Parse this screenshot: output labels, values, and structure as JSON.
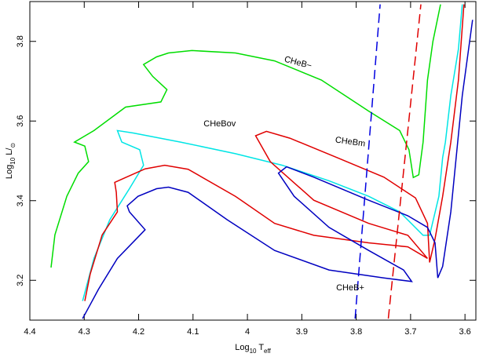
{
  "chart_data": {
    "type": "line",
    "xlabel": [
      "Log",
      "10",
      " T",
      "eff"
    ],
    "ylabel": [
      "Log",
      "10",
      " L/",
      "⊙"
    ],
    "xlim": [
      4.4,
      3.58
    ],
    "ylim": [
      3.1,
      3.9
    ],
    "xticks": [
      4.4,
      4.3,
      4.2,
      4.1,
      4,
      3.9,
      3.8,
      3.7,
      3.6
    ],
    "yticks": [
      3.2,
      3.4,
      3.6,
      3.8
    ],
    "series": [
      {
        "color": "#00dd00",
        "dashed": false,
        "x": [
          4.361,
          4.354,
          4.332,
          4.311,
          4.292,
          4.299,
          4.318,
          4.282,
          4.224,
          4.159,
          4.148,
          4.174,
          4.191,
          4.167,
          4.145,
          4.102,
          4.022,
          3.95,
          3.864,
          3.777,
          3.72,
          3.703,
          3.695,
          3.685,
          3.677,
          3.669,
          3.659,
          3.645
        ],
        "y": [
          3.232,
          3.314,
          3.411,
          3.469,
          3.498,
          3.537,
          3.547,
          3.576,
          3.635,
          3.648,
          3.679,
          3.712,
          3.742,
          3.761,
          3.771,
          3.777,
          3.771,
          3.751,
          3.703,
          3.625,
          3.576,
          3.528,
          3.458,
          3.465,
          3.547,
          3.703,
          3.8,
          3.893
        ]
      },
      {
        "color": "#00e5e5",
        "dashed": false,
        "x": [
          4.303,
          4.282,
          4.253,
          4.217,
          4.191,
          4.198,
          4.231,
          4.239,
          4.21,
          4.123,
          4.022,
          3.936,
          3.85,
          3.777,
          3.72,
          3.677,
          3.665,
          3.648,
          3.641,
          3.636,
          3.626,
          3.612,
          3.605
        ],
        "y": [
          3.148,
          3.255,
          3.352,
          3.43,
          3.489,
          3.528,
          3.547,
          3.576,
          3.57,
          3.547,
          3.518,
          3.489,
          3.45,
          3.411,
          3.372,
          3.313,
          3.313,
          3.411,
          3.508,
          3.547,
          3.664,
          3.781,
          3.893
        ]
      },
      {
        "color": "#e00000",
        "dashed": false,
        "x": [
          4.299,
          4.289,
          4.267,
          4.239,
          4.241,
          4.244,
          4.229,
          4.188,
          4.152,
          4.109,
          4.022,
          3.95,
          3.878,
          3.777,
          3.705,
          3.669,
          3.705,
          3.777,
          3.878,
          3.958,
          3.985,
          3.965,
          3.922,
          3.835,
          3.749,
          3.691,
          3.669,
          3.665,
          3.655,
          3.641,
          3.626,
          3.612,
          3.602
        ],
        "y": [
          3.148,
          3.216,
          3.314,
          3.372,
          3.421,
          3.446,
          3.455,
          3.48,
          3.489,
          3.479,
          3.411,
          3.343,
          3.313,
          3.294,
          3.284,
          3.255,
          3.313,
          3.343,
          3.401,
          3.498,
          3.563,
          3.574,
          3.557,
          3.508,
          3.459,
          3.407,
          3.343,
          3.245,
          3.304,
          3.411,
          3.547,
          3.703,
          3.893
        ]
      },
      {
        "color": "#0000c0",
        "dashed": false,
        "x": [
          4.303,
          4.289,
          4.274,
          4.239,
          4.188,
          4.217,
          4.221,
          4.201,
          4.167,
          4.145,
          4.109,
          4.037,
          3.95,
          3.85,
          3.749,
          3.698,
          3.713,
          3.777,
          3.85,
          3.914,
          3.943,
          3.928,
          3.878,
          3.777,
          3.705,
          3.669,
          3.655,
          3.65,
          3.641,
          3.626,
          3.605,
          3.586
        ],
        "y": [
          3.104,
          3.139,
          3.177,
          3.255,
          3.327,
          3.372,
          3.387,
          3.411,
          3.43,
          3.434,
          3.421,
          3.352,
          3.275,
          3.226,
          3.206,
          3.197,
          3.226,
          3.275,
          3.333,
          3.411,
          3.469,
          3.485,
          3.459,
          3.401,
          3.362,
          3.333,
          3.294,
          3.206,
          3.235,
          3.372,
          3.664,
          3.854
        ]
      },
      {
        "color": "#0000e0",
        "dashed": true,
        "x": [
          3.802,
          3.756
        ],
        "y": [
          3.104,
          3.893
        ]
      },
      {
        "color": "#e00000",
        "dashed": true,
        "x": [
          3.741,
          3.681
        ],
        "y": [
          3.104,
          3.893
        ]
      }
    ],
    "annotations": [
      {
        "text": "CHeB−",
        "x": 3.907,
        "y": 3.746,
        "color": "#00dd00",
        "rotate": 15
      },
      {
        "text": "CHeBov",
        "x": 4.051,
        "y": 3.592,
        "color": "#00e5e5",
        "rotate": 0
      },
      {
        "text": "CHeBm",
        "x": 3.811,
        "y": 3.547,
        "color": "#e00000",
        "rotate": 8
      },
      {
        "text": "CHeB+",
        "x": 3.811,
        "y": 3.181,
        "color": "#0000c0",
        "rotate": 0
      }
    ]
  }
}
